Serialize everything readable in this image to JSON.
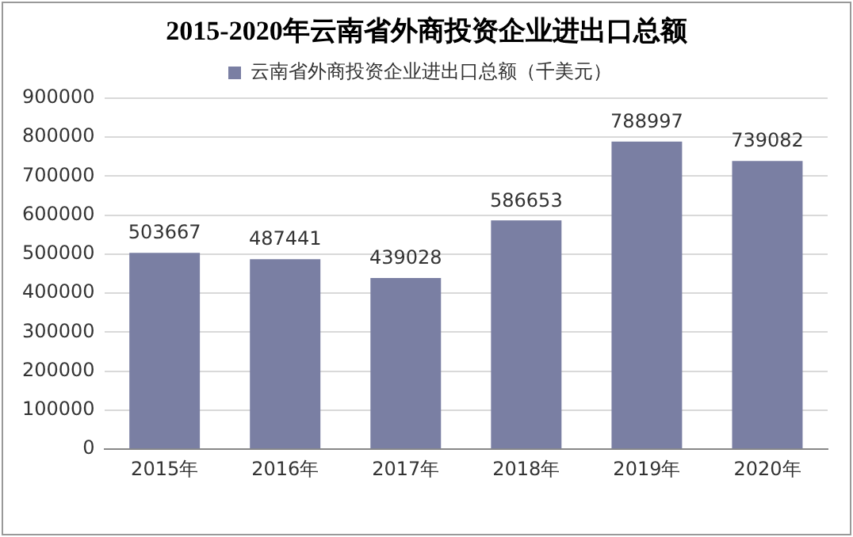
{
  "chart_data": {
    "type": "bar",
    "title": "2015-2020年云南省外商投资企业进出口总额",
    "categories": [
      "2015年",
      "2016年",
      "2017年",
      "2018年",
      "2019年",
      "2020年"
    ],
    "series": [
      {
        "name": "云南省外商投资企业进出口总额（千美元）",
        "color": "#7a7fa3",
        "values": [
          503667,
          487441,
          439028,
          586653,
          788997,
          739082
        ]
      }
    ],
    "ylim": [
      0,
      900000
    ],
    "yticks": [
      0,
      100000,
      200000,
      300000,
      400000,
      500000,
      600000,
      700000,
      800000,
      900000
    ],
    "grid": "y",
    "legend": "top",
    "data_labels": true
  }
}
